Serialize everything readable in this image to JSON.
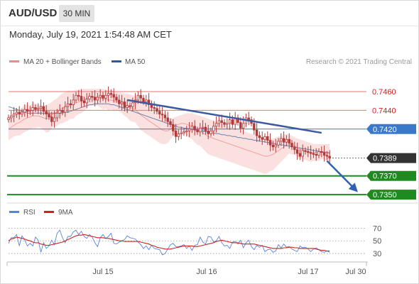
{
  "header": {
    "symbol": "AUD/USD",
    "timeframe": "30 MIN",
    "datetime": "Monday, July 19, 2021 1:54:48 AM CET"
  },
  "colors": {
    "candle": "#b03a3a",
    "bollinger_fill": "#fbe0e0",
    "ma20": "#f08a8a",
    "ma50": "#2e5c99",
    "trendline": "#3c5aa0",
    "resistance": "#e57373",
    "pivot": "#3a78c8",
    "support": "#1f8a1f",
    "last_price_bg": "#333333",
    "arrow": "#2f63b0",
    "rsi": "#5b82d6",
    "rsi_ma": "#cc2222"
  },
  "chart_data": [
    {
      "type": "candlestick",
      "legend": [
        "MA 20 + Bollinger Bands",
        "MA 50"
      ],
      "watermark": "Research © 2021 Trading Central",
      "x_labels": [
        "Jul 15",
        "Jul 16",
        "Jul 17",
        "Jul 30"
      ],
      "n_bars": 120,
      "close": [
        0.7432,
        0.7434,
        0.7436,
        0.7438,
        0.7436,
        0.7438,
        0.7441,
        0.7439,
        0.744,
        0.7443,
        0.7441,
        0.7442,
        0.7444,
        0.7439,
        0.7436,
        0.7433,
        0.7428,
        0.7432,
        0.7437,
        0.744,
        0.7438,
        0.7444,
        0.7447,
        0.7446,
        0.7451,
        0.7456,
        0.7455,
        0.745,
        0.7448,
        0.7452,
        0.7455,
        0.7454,
        0.7451,
        0.7454,
        0.7456,
        0.7453,
        0.7456,
        0.7458,
        0.7457,
        0.7454,
        0.7451,
        0.7447,
        0.7449,
        0.7443,
        0.7445,
        0.7444,
        0.7448,
        0.7451,
        0.7456,
        0.7453,
        0.7449,
        0.7451,
        0.7446,
        0.7443,
        0.7442,
        0.7439,
        0.7436,
        0.7435,
        0.7432,
        0.7428,
        0.7425,
        0.7418,
        0.7412,
        0.7415,
        0.7416,
        0.7417,
        0.7418,
        0.742,
        0.7423,
        0.7419,
        0.7417,
        0.7421,
        0.7422,
        0.7418,
        0.7415,
        0.7418,
        0.7423,
        0.7426,
        0.7429,
        0.7427,
        0.7425,
        0.7426,
        0.743,
        0.7425,
        0.7432,
        0.7427,
        0.7421,
        0.7426,
        0.7432,
        0.743,
        0.7426,
        0.7419,
        0.7413,
        0.7411,
        0.7409,
        0.7412,
        0.7408,
        0.7403,
        0.7401,
        0.7403,
        0.7407,
        0.741,
        0.7406,
        0.7409,
        0.7405,
        0.7401,
        0.7398,
        0.7394,
        0.7391,
        0.7397,
        0.7396,
        0.7395,
        0.7394,
        0.7393,
        0.7392,
        0.7396,
        0.7395,
        0.7392,
        0.7391,
        0.7389
      ],
      "ma20": [
        0.742,
        0.7422,
        0.7424,
        0.7426,
        0.7427,
        0.7429,
        0.7431,
        0.7432,
        0.7433,
        0.7434,
        0.7434,
        0.7434,
        0.7433,
        0.7432,
        0.7431,
        0.7432,
        0.7435,
        0.7437,
        0.7438,
        0.7441,
        0.7442,
        0.7444,
        0.7445,
        0.7446,
        0.7446,
        0.7448,
        0.7449,
        0.745,
        0.7451,
        0.7453,
        0.7454,
        0.7454,
        0.7454,
        0.7454,
        0.7453,
        0.7452,
        0.7452,
        0.7451,
        0.7451,
        0.745,
        0.745,
        0.7449,
        0.7448,
        0.7446,
        0.7445,
        0.7443,
        0.7442,
        0.7441,
        0.7438,
        0.7435,
        0.7433,
        0.7431,
        0.7429,
        0.7427,
        0.7425,
        0.7423,
        0.7421,
        0.7419,
        0.7418,
        0.7418,
        0.742,
        0.7422,
        0.7424,
        0.7425,
        0.7426,
        0.7426,
        0.7425,
        0.7424,
        0.7423,
        0.7421,
        0.7419,
        0.7418,
        0.7416,
        0.7414,
        0.7412,
        0.7411,
        0.741,
        0.7409,
        0.7408,
        0.7407,
        0.7406,
        0.7405,
        0.7404,
        0.7403,
        0.7402,
        0.7401,
        0.74,
        0.7399,
        0.7398,
        0.7397,
        0.7396,
        0.7395,
        0.7394,
        0.7393,
        0.7392,
        0.7391,
        0.7391,
        0.7392,
        0.7393,
        0.7395,
        0.7397,
        0.7399,
        0.7401,
        0.7403,
        0.7404,
        0.7403,
        0.7402,
        0.74,
        0.7399,
        0.7398,
        0.7397,
        0.7396,
        0.7395,
        0.7395,
        0.7395,
        0.7395,
        0.7396,
        0.7396,
        0.7395,
        0.7395
      ],
      "bb_upper": [
        0.7432,
        0.7434,
        0.7436,
        0.7439,
        0.7441,
        0.7443,
        0.7445,
        0.7446,
        0.7446,
        0.7447,
        0.7447,
        0.7446,
        0.7445,
        0.7445,
        0.7446,
        0.7447,
        0.7449,
        0.7451,
        0.7453,
        0.7456,
        0.7458,
        0.746,
        0.7461,
        0.7461,
        0.7461,
        0.7462,
        0.7462,
        0.7463,
        0.7463,
        0.7463,
        0.7463,
        0.7463,
        0.7463,
        0.7463,
        0.7463,
        0.7463,
        0.7462,
        0.7462,
        0.7461,
        0.7461,
        0.746,
        0.7459,
        0.7459,
        0.7458,
        0.7458,
        0.7457,
        0.7456,
        0.7455,
        0.7453,
        0.7451,
        0.7449,
        0.7447,
        0.7445,
        0.7443,
        0.7441,
        0.7439,
        0.7437,
        0.7434,
        0.7432,
        0.7431,
        0.7431,
        0.7432,
        0.7433,
        0.7434,
        0.7435,
        0.7436,
        0.7437,
        0.7437,
        0.7437,
        0.7436,
        0.7435,
        0.7434,
        0.7433,
        0.7432,
        0.7431,
        0.743,
        0.7429,
        0.7428,
        0.7427,
        0.7426,
        0.7425,
        0.7424,
        0.7423,
        0.7422,
        0.7421,
        0.742,
        0.7419,
        0.7418,
        0.7417,
        0.7416,
        0.7415,
        0.7414,
        0.7413,
        0.7412,
        0.7411,
        0.741,
        0.7409,
        0.7409,
        0.741,
        0.7411,
        0.7412,
        0.7413,
        0.7414,
        0.7415,
        0.7414,
        0.7413,
        0.7411,
        0.741,
        0.7409,
        0.7408,
        0.7407,
        0.7406,
        0.7405,
        0.7404,
        0.7404,
        0.7404,
        0.7404,
        0.7404,
        0.7404,
        0.7404
      ],
      "bb_lower": [
        0.7408,
        0.741,
        0.7412,
        0.7413,
        0.7413,
        0.7415,
        0.7417,
        0.7418,
        0.742,
        0.7421,
        0.7421,
        0.7422,
        0.7421,
        0.7419,
        0.7416,
        0.7417,
        0.7421,
        0.7423,
        0.7423,
        0.7426,
        0.7426,
        0.7428,
        0.7429,
        0.7431,
        0.7431,
        0.7434,
        0.7436,
        0.7437,
        0.7439,
        0.7443,
        0.7445,
        0.7445,
        0.7445,
        0.7445,
        0.7443,
        0.7441,
        0.7442,
        0.744,
        0.7441,
        0.7439,
        0.744,
        0.7439,
        0.7437,
        0.7434,
        0.7432,
        0.7429,
        0.7428,
        0.7427,
        0.7423,
        0.7419,
        0.7417,
        0.7415,
        0.7413,
        0.7411,
        0.7409,
        0.7407,
        0.7405,
        0.7404,
        0.7404,
        0.7405,
        0.7409,
        0.7412,
        0.7415,
        0.7416,
        0.7417,
        0.7416,
        0.7413,
        0.7411,
        0.7409,
        0.7406,
        0.7403,
        0.7402,
        0.7399,
        0.7396,
        0.7393,
        0.7392,
        0.7391,
        0.739,
        0.7389,
        0.7388,
        0.7387,
        0.7386,
        0.7385,
        0.7384,
        0.7383,
        0.7382,
        0.7381,
        0.738,
        0.7379,
        0.7378,
        0.7377,
        0.7376,
        0.7375,
        0.7374,
        0.7373,
        0.7372,
        0.7373,
        0.7375,
        0.7376,
        0.7379,
        0.7382,
        0.7385,
        0.7388,
        0.7391,
        0.7394,
        0.7393,
        0.7393,
        0.739,
        0.7389,
        0.7388,
        0.7387,
        0.7386,
        0.7385,
        0.7386,
        0.7386,
        0.7386,
        0.7388,
        0.7388,
        0.7386,
        0.7386
      ],
      "ma50": [
        0.7444,
        0.7443,
        0.7442,
        0.7441,
        0.744,
        0.7439,
        0.7438,
        0.7437,
        0.7437,
        0.7437,
        0.7437,
        0.7437,
        0.7437,
        0.7437,
        0.7437,
        0.7437,
        0.7437,
        0.7437,
        0.7437,
        0.7437,
        0.7437,
        0.7438,
        0.7438,
        0.7439,
        0.744,
        0.7441,
        0.7442,
        0.7443,
        0.7444,
        0.7445,
        0.7446,
        0.7446,
        0.7447,
        0.7447,
        0.7447,
        0.7447,
        0.7447,
        0.7447,
        0.7446,
        0.7446,
        0.7445,
        0.7444,
        0.7443,
        0.7442,
        0.7441,
        0.744,
        0.7439,
        0.7438,
        0.7437,
        0.7436,
        0.7435,
        0.7434,
        0.7433,
        0.7432,
        0.7431,
        0.743,
        0.7429,
        0.7428,
        0.7427,
        0.7426,
        0.7425,
        0.7424,
        0.7423,
        0.7422,
        0.7422,
        0.7421,
        0.7421,
        0.742,
        0.742,
        0.7419,
        0.7419,
        0.7418,
        0.7418,
        0.7417,
        0.7417,
        0.7416,
        0.7416,
        0.7415,
        0.7415,
        0.7414,
        0.7414,
        0.7413,
        0.7413,
        0.7412,
        0.7412,
        0.7411,
        0.7411,
        0.741,
        0.741,
        0.7409,
        0.7409,
        0.7408,
        0.7408,
        0.7407,
        0.7407,
        0.7406,
        0.7406,
        0.7405,
        0.7405,
        0.7404,
        0.7404,
        0.7403,
        0.7403,
        0.7402,
        0.7402,
        0.7401,
        0.7401,
        0.74,
        0.74,
        0.7399,
        0.7399,
        0.7398,
        0.7398,
        0.7397,
        0.7397,
        0.7396,
        0.7396,
        0.7395,
        0.7395,
        0.7394
      ],
      "trendline": [
        {
          "bar": 44,
          "price": 0.7451
        },
        {
          "bar": 116,
          "price": 0.7416
        }
      ],
      "projection": [
        {
          "bar": 118,
          "price": 0.7386
        },
        {
          "bar": 129,
          "price": 0.7354
        }
      ],
      "levels": [
        {
          "price": 0.746,
          "label": "0.7460",
          "kind": "resistance"
        },
        {
          "price": 0.744,
          "label": "0.7440",
          "kind": "resistance"
        },
        {
          "price": 0.742,
          "label": "0.7420",
          "kind": "pivot"
        },
        {
          "price": 0.7389,
          "label": "0.7389",
          "kind": "last"
        },
        {
          "price": 0.737,
          "label": "0.7370",
          "kind": "support"
        },
        {
          "price": 0.735,
          "label": "0.7350",
          "kind": "support"
        }
      ],
      "ylim": [
        0.7341,
        0.7482
      ]
    },
    {
      "type": "line",
      "legend": [
        "RSI",
        "9MA"
      ],
      "y_ticks": [
        70,
        50,
        30
      ],
      "ylim": [
        20,
        85
      ],
      "series": [
        {
          "name": "RSI",
          "values": [
            46,
            55,
            55,
            60,
            42,
            58,
            51,
            42,
            46,
            42,
            56,
            51,
            32,
            47,
            38,
            42,
            51,
            44,
            62,
            67,
            55,
            47,
            57,
            57,
            64,
            67,
            60,
            65,
            57,
            54,
            60,
            56,
            47,
            41,
            55,
            60,
            54,
            57,
            62,
            46,
            45,
            48,
            50,
            52,
            58,
            55,
            54,
            53,
            48,
            44,
            38,
            42,
            36,
            43,
            38,
            37,
            36,
            28,
            30,
            37,
            44,
            46,
            41,
            41,
            42,
            44,
            38,
            42,
            35,
            43,
            44,
            56,
            48,
            45,
            57,
            56,
            48,
            50,
            57,
            47,
            42,
            43,
            38,
            48,
            49,
            45,
            51,
            39,
            47,
            51,
            41,
            36,
            43,
            40,
            43,
            33,
            36,
            37,
            32,
            34,
            44,
            39,
            45,
            40,
            41,
            37,
            35,
            33,
            42,
            39,
            40,
            37,
            33,
            37,
            39,
            36,
            33,
            32,
            34,
            32
          ]
        },
        {
          "name": "9MA",
          "values": [
            50,
            53,
            54,
            56,
            55,
            54,
            53,
            51,
            50,
            48,
            47,
            47,
            45,
            44,
            43,
            43,
            44,
            45,
            46,
            47,
            48,
            50,
            52,
            54,
            56,
            58,
            59,
            59,
            60,
            59,
            58,
            57,
            56,
            55,
            55,
            55,
            54,
            54,
            53,
            52,
            51,
            50,
            50,
            49,
            49,
            49,
            49,
            49,
            49,
            48,
            47,
            46,
            45,
            43,
            42,
            40,
            39,
            38,
            37,
            37,
            37,
            38,
            39,
            40,
            41,
            42,
            42,
            42,
            42,
            41,
            41,
            42,
            43,
            44,
            45,
            46,
            47,
            49,
            50,
            51,
            50,
            49,
            48,
            47,
            47,
            47,
            46,
            45,
            45,
            45,
            45,
            45,
            44,
            43,
            42,
            41,
            40,
            39,
            38,
            38,
            38,
            38,
            39,
            39,
            40,
            40,
            39,
            39,
            38,
            38,
            38,
            38,
            38,
            38,
            37,
            36,
            35,
            35,
            34,
            34
          ]
        }
      ]
    }
  ]
}
